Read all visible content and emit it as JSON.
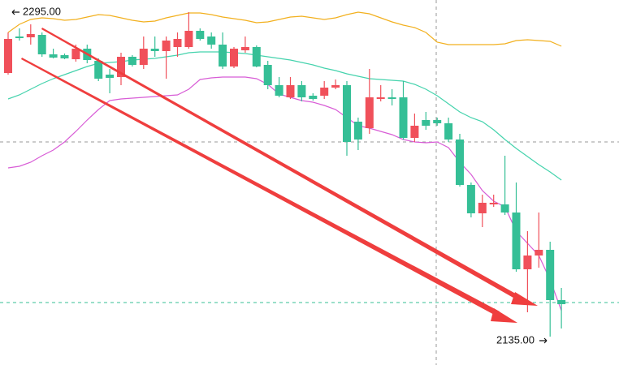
{
  "chart_data": {
    "type": "candlestick",
    "ylim": [
      2121,
      2301
    ],
    "up_color": "#f0505a",
    "down_color": "#35bf96",
    "candles": {
      "open": [
        2265,
        2283,
        2282.6,
        2283.8,
        2274.2,
        2273.8,
        2271.8,
        2277,
        2271,
        2264.2,
        2263,
        2273,
        2269,
        2277,
        2275.8,
        2277.8,
        2277.8,
        2285.8,
        2283,
        2279,
        2268.2,
        2276.2,
        2277.8,
        2269,
        2259,
        2253,
        2259,
        2253.8,
        2253.8,
        2257.8,
        2259,
        2241,
        2237.8,
        2252.2,
        2253,
        2253,
        2233,
        2241.8,
        2241.8,
        2240.2,
        2232.2,
        2209.8,
        2195.8,
        2200.2,
        2200.2,
        2196.2,
        2168.2,
        2175,
        2177.8,
        2153
      ],
      "high": [
        2285,
        2287,
        2289,
        2285,
        2277,
        2274.6,
        2279,
        2279,
        2272.2,
        2267,
        2275,
        2273.8,
        2283,
        2283,
        2283,
        2285,
        2295,
        2287,
        2285,
        2285,
        2277.8,
        2283,
        2278.6,
        2271,
        2263,
        2263,
        2261,
        2255,
        2261,
        2261.8,
        2261,
        2243,
        2267,
        2259,
        2257,
        2261,
        2245,
        2245.8,
        2243,
        2243,
        2235,
        2211,
        2205,
        2205,
        2224.2,
        2211,
        2187,
        2196.2,
        2181.8,
        2159
      ],
      "low": [
        2264.2,
        2281,
        2279,
        2273,
        2272.2,
        2271.8,
        2270.6,
        2269.8,
        2261,
        2255,
        2259,
        2268.2,
        2267,
        2273,
        2262.2,
        2273,
        2277,
        2281,
        2277,
        2267,
        2267.4,
        2275,
        2267.8,
        2257,
        2253,
        2252.2,
        2251,
        2251.4,
        2252.2,
        2257,
        2224.2,
        2227,
        2235,
        2251,
        2249,
        2232.2,
        2231,
        2237,
        2239,
        2231,
        2209,
        2193.8,
        2189,
        2199,
        2195,
        2167,
        2147,
        2169,
        2135,
        2139
      ],
      "close": [
        2281.8,
        2282.2,
        2284.2,
        2274.2,
        2272.6,
        2272.2,
        2277,
        2271.4,
        2262.2,
        2262.6,
        2273,
        2269,
        2277,
        2275.8,
        2281,
        2281.8,
        2285.8,
        2281.8,
        2279,
        2268.2,
        2277,
        2277.8,
        2268.2,
        2259,
        2253.8,
        2259,
        2253,
        2252.2,
        2257.8,
        2259,
        2231,
        2232.2,
        2253,
        2253,
        2252.2,
        2233,
        2239,
        2239,
        2240.2,
        2232.2,
        2209.8,
        2195.8,
        2201,
        2201,
        2196.2,
        2168.2,
        2175,
        2177.8,
        2153,
        2151
      ]
    },
    "lines": [
      {
        "color": "#f2b01e",
        "values": [
          2285,
          2289,
          2291.4,
          2292.2,
          2291.8,
          2291,
          2291.4,
          2292.6,
          2293.8,
          2293.4,
          2292.2,
          2291,
          2290.2,
          2290.6,
          2292.2,
          2293.4,
          2294.6,
          2294.6,
          2293.8,
          2292.6,
          2291.8,
          2291,
          2289.8,
          2290.2,
          2291.4,
          2292.6,
          2293,
          2292.2,
          2291.4,
          2292.2,
          2293.8,
          2295,
          2294.2,
          2292.2,
          2290.2,
          2288.6,
          2287.4,
          2285,
          2280.2,
          2279,
          2279,
          2279,
          2279,
          2279,
          2279.4,
          2281,
          2281.4,
          2281,
          2280.6,
          2278.2
        ]
      },
      {
        "color": "#45d3ad",
        "values": [
          2252.2,
          2254.2,
          2257,
          2259.8,
          2262.2,
          2264.2,
          2266.2,
          2268.2,
          2269.8,
          2270.2,
          2270.6,
          2271.4,
          2271.8,
          2272.2,
          2273,
          2273.8,
          2275,
          2275.4,
          2275.4,
          2275.4,
          2275,
          2274.6,
          2273.8,
          2273,
          2272.2,
          2271.4,
          2270.2,
          2269,
          2267.4,
          2266.2,
          2264.6,
          2263.4,
          2262.2,
          2261.8,
          2261.4,
          2261,
          2259.4,
          2257,
          2253.8,
          2249.8,
          2245.8,
          2243,
          2241,
          2237,
          2232.2,
          2227.8,
          2223.8,
          2219.8,
          2216.2,
          2212.2
        ]
      },
      {
        "color": "#d85cd6",
        "values": [
          2218.2,
          2219,
          2221,
          2224.2,
          2227,
          2231,
          2236.2,
          2241.8,
          2247,
          2251.4,
          2252.2,
          2252.6,
          2253,
          2253.4,
          2253.8,
          2254.2,
          2257,
          2261.8,
          2262.6,
          2263,
          2263,
          2263,
          2262.2,
          2259.4,
          2254.6,
          2253,
          2251.4,
          2250.6,
          2249,
          2247,
          2243,
          2239,
          2237.8,
          2236.2,
          2234.6,
          2232.2,
          2231,
          2230.6,
          2231,
          2228.2,
          2221,
          2215,
          2207,
          2201.8,
          2199,
          2187,
          2181,
          2175,
          2163,
          2147.8
        ]
      }
    ],
    "annotations": [
      {
        "value": 2295,
        "label": "2295.00"
      },
      {
        "value": 2135,
        "label": "2135.00"
      }
    ]
  }
}
